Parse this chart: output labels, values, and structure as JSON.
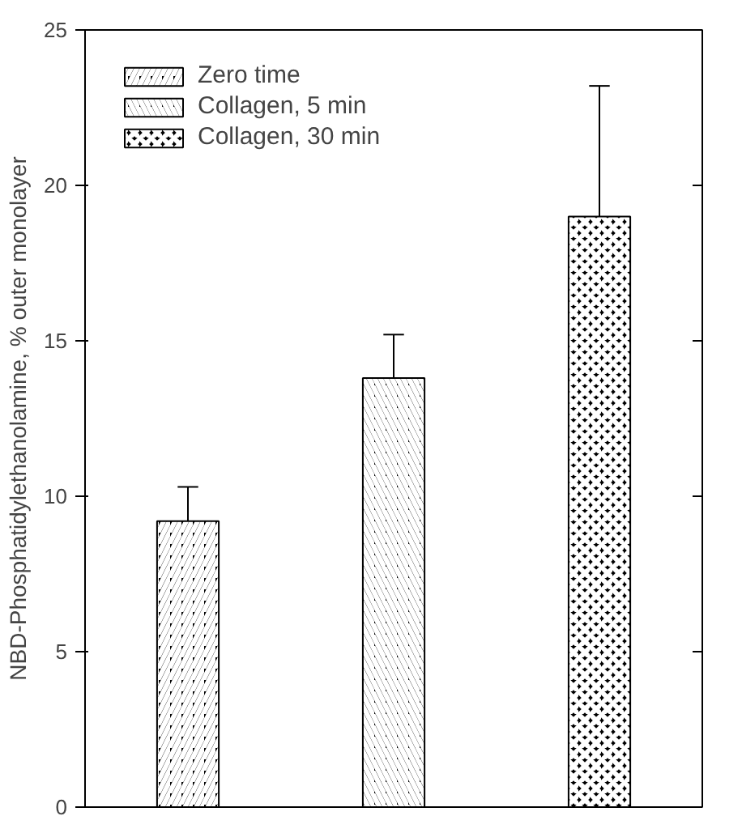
{
  "chart_data": {
    "type": "bar",
    "ylabel": "NBD-Phosphatidylethanolamine, % outer monolayer",
    "categories": [
      null,
      null,
      null
    ],
    "series": [
      {
        "name": "Zero time",
        "color": "#000000",
        "values": [
          9.2,
          null,
          null
        ],
        "errors": [
          [
            9.2,
            10.3
          ],
          null,
          null
        ]
      },
      {
        "name": "Collagen, 5 min",
        "color": "#000000",
        "values": [
          null,
          13.8,
          null
        ],
        "errors": [
          null,
          [
            13.8,
            15.2
          ],
          null
        ]
      },
      {
        "name": "Collagen, 30 min",
        "color": "#000000",
        "values": [
          null,
          null,
          19.0
        ],
        "errors": [
          null,
          null,
          [
            19.0,
            23.2
          ]
        ]
      }
    ],
    "ylim": [
      0,
      25
    ],
    "yticks": [
      0,
      5,
      10,
      15,
      20,
      25
    ],
    "stacked": true,
    "grid": false,
    "legend": "top left",
    "tick_labels": "y"
  }
}
